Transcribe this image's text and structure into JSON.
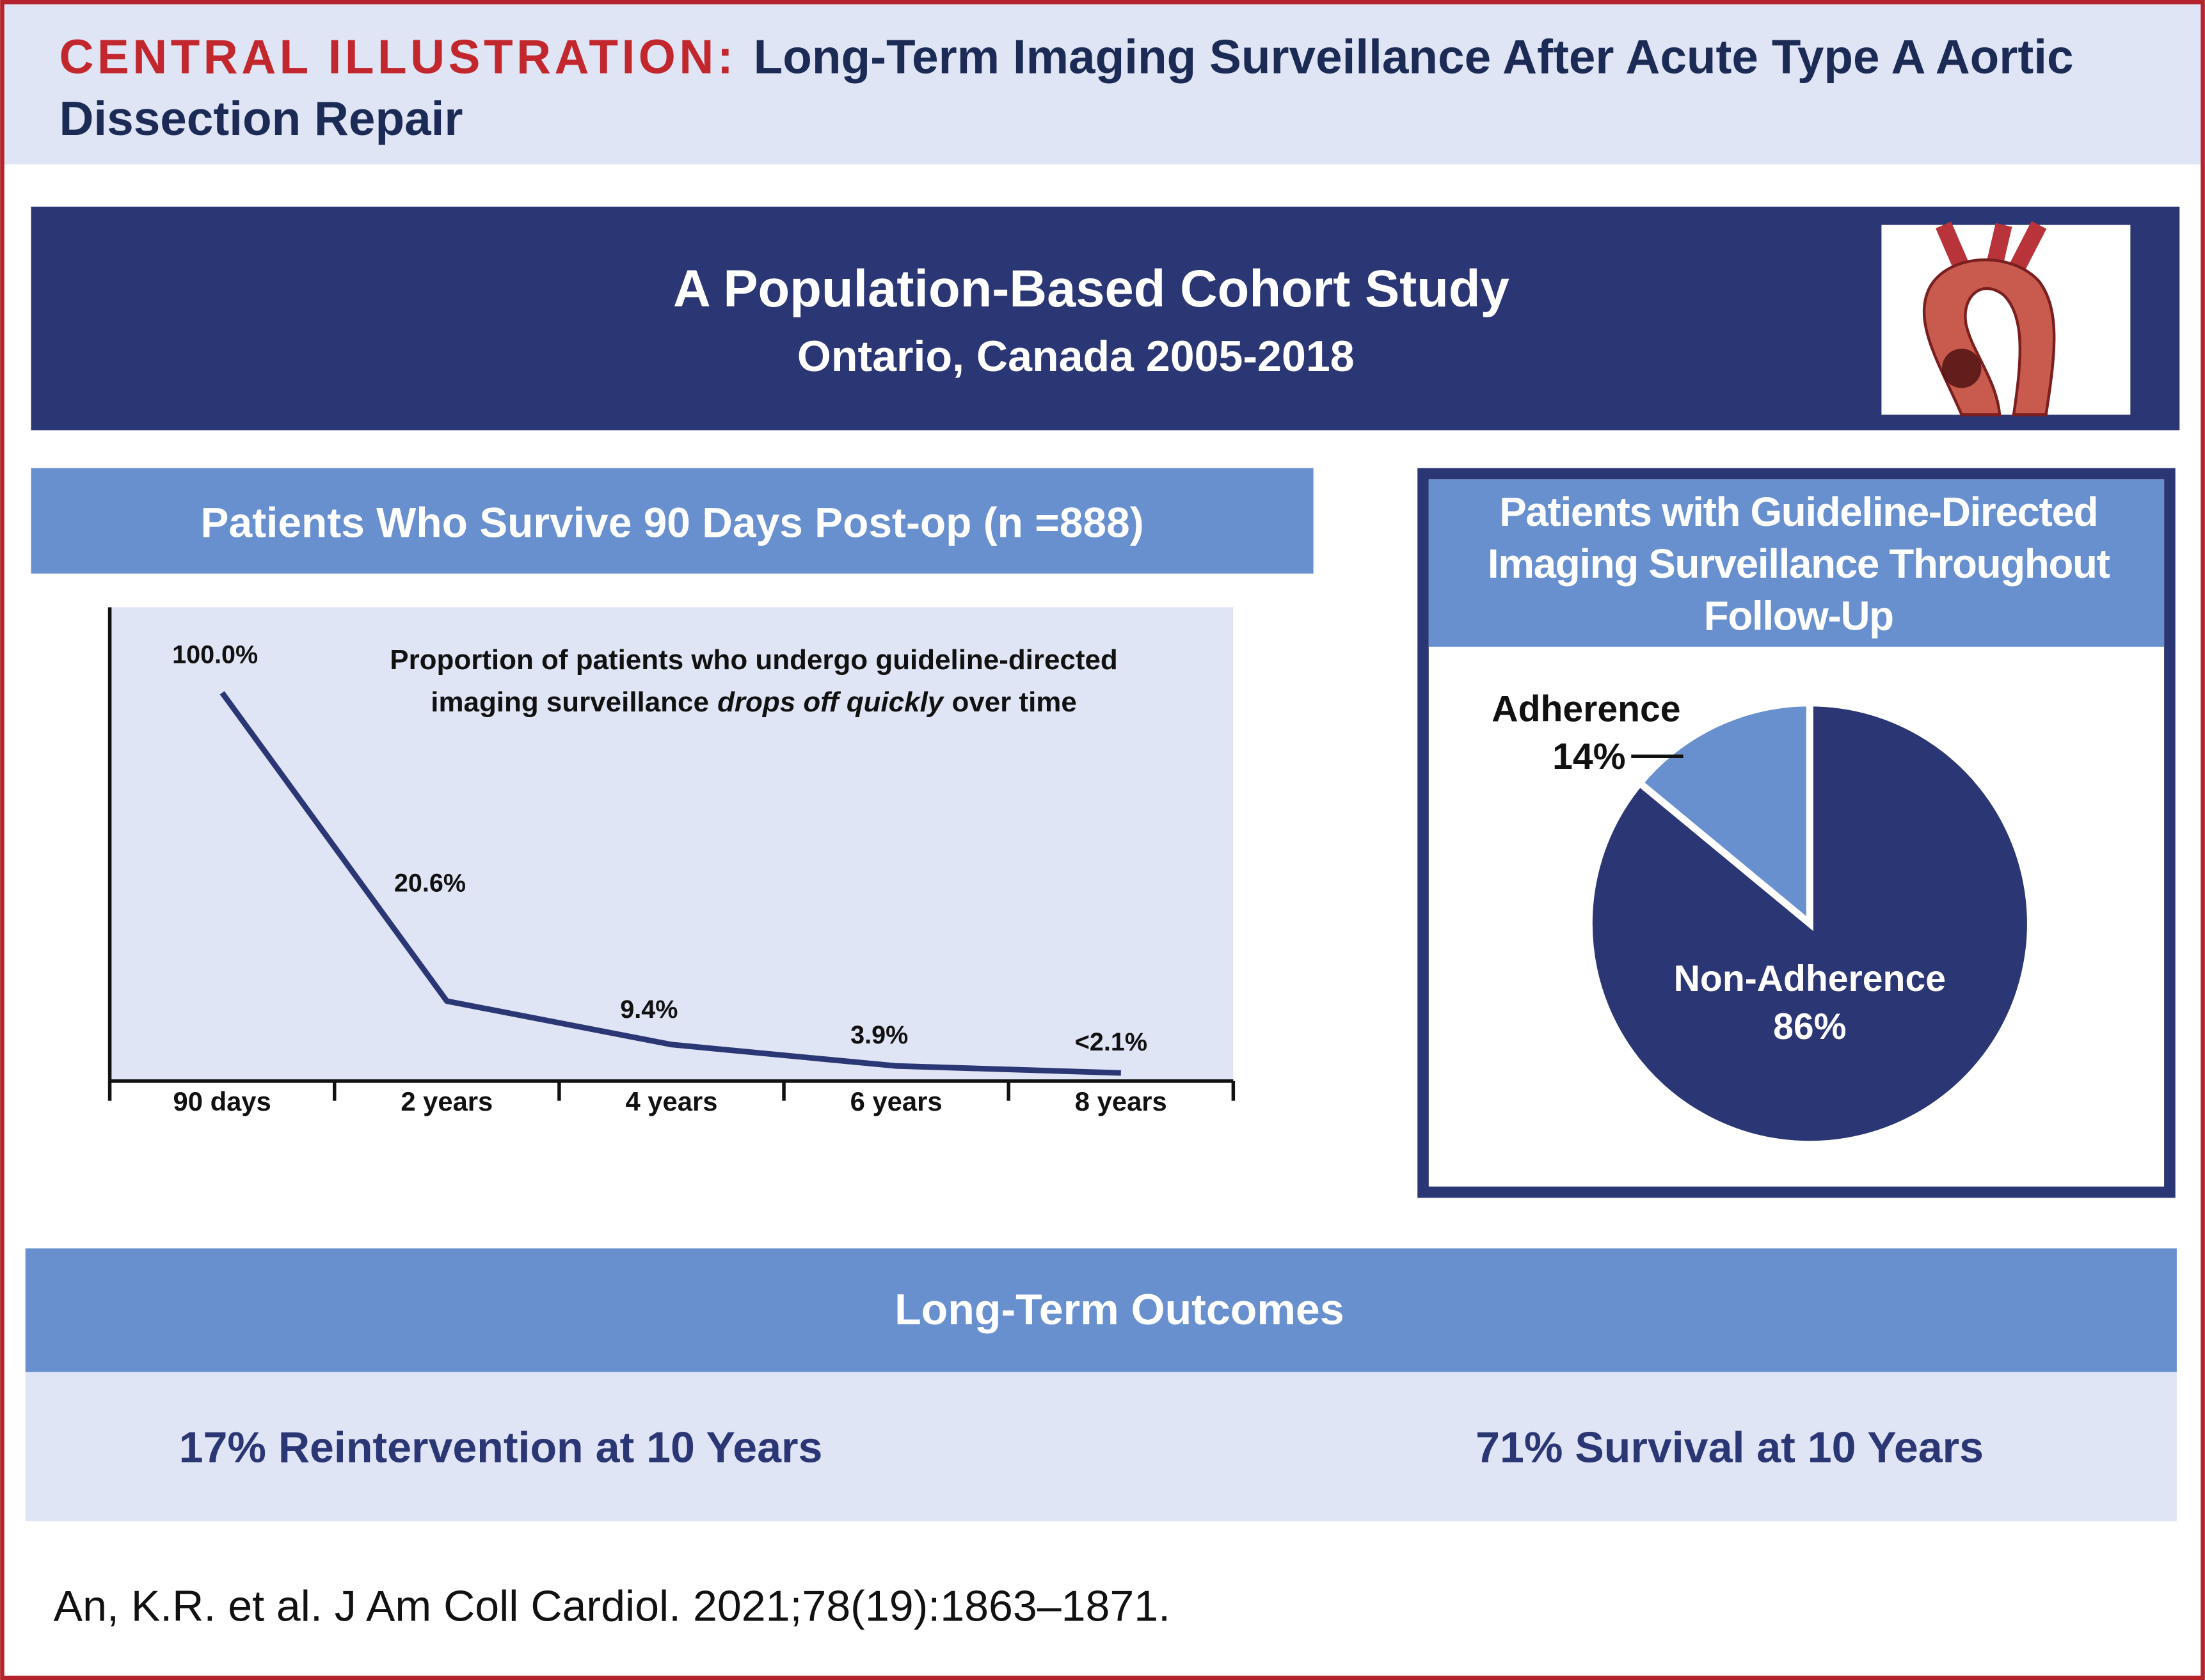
{
  "header": {
    "label": "CENTRAL ILLUSTRATION:",
    "title": "Long-Term Imaging Surveillance After Acute Type A Aortic Dissection Repair"
  },
  "banner": {
    "title": "A Population-Based Cohort Study",
    "subtitle": "Ontario, Canada 2005-2018"
  },
  "chart_data": [
    {
      "type": "line",
      "title": "Patients Who Survive 90 Days Post-op (n =888)",
      "annotation": [
        "Proportion of patients who undergo guideline-directed",
        "imaging surveillance",
        "drops off quickly",
        "over time"
      ],
      "categories": [
        "90 days",
        "2 years",
        "4 years",
        "6 years",
        "8 years"
      ],
      "values": [
        100,
        20.6,
        9.4,
        3.9,
        2.1
      ],
      "value_labels": [
        "100.0%",
        "20.6%",
        "9.4%",
        "3.9%",
        "<2.1%"
      ],
      "color": "#2b3674",
      "ylim": [
        0,
        122
      ]
    },
    {
      "type": "pie",
      "title": "Patients with Guideline-Directed Imaging Surveillance Throughout Follow-Up",
      "categories": [
        "Adherence",
        "Non-Adherence"
      ],
      "values": [
        14,
        86
      ],
      "value_labels": [
        "14%",
        "86%"
      ],
      "colors": [
        "#6890cf",
        "#2b3674"
      ]
    }
  ],
  "outcomes": {
    "title": "Long-Term Outcomes",
    "items": [
      "17% Reintervention at 10 Years",
      "71% Survival at 10 Years"
    ]
  },
  "citation": "An, K.R. et al. J Am Coll Cardiol. 2021;78(19):1863–1871."
}
